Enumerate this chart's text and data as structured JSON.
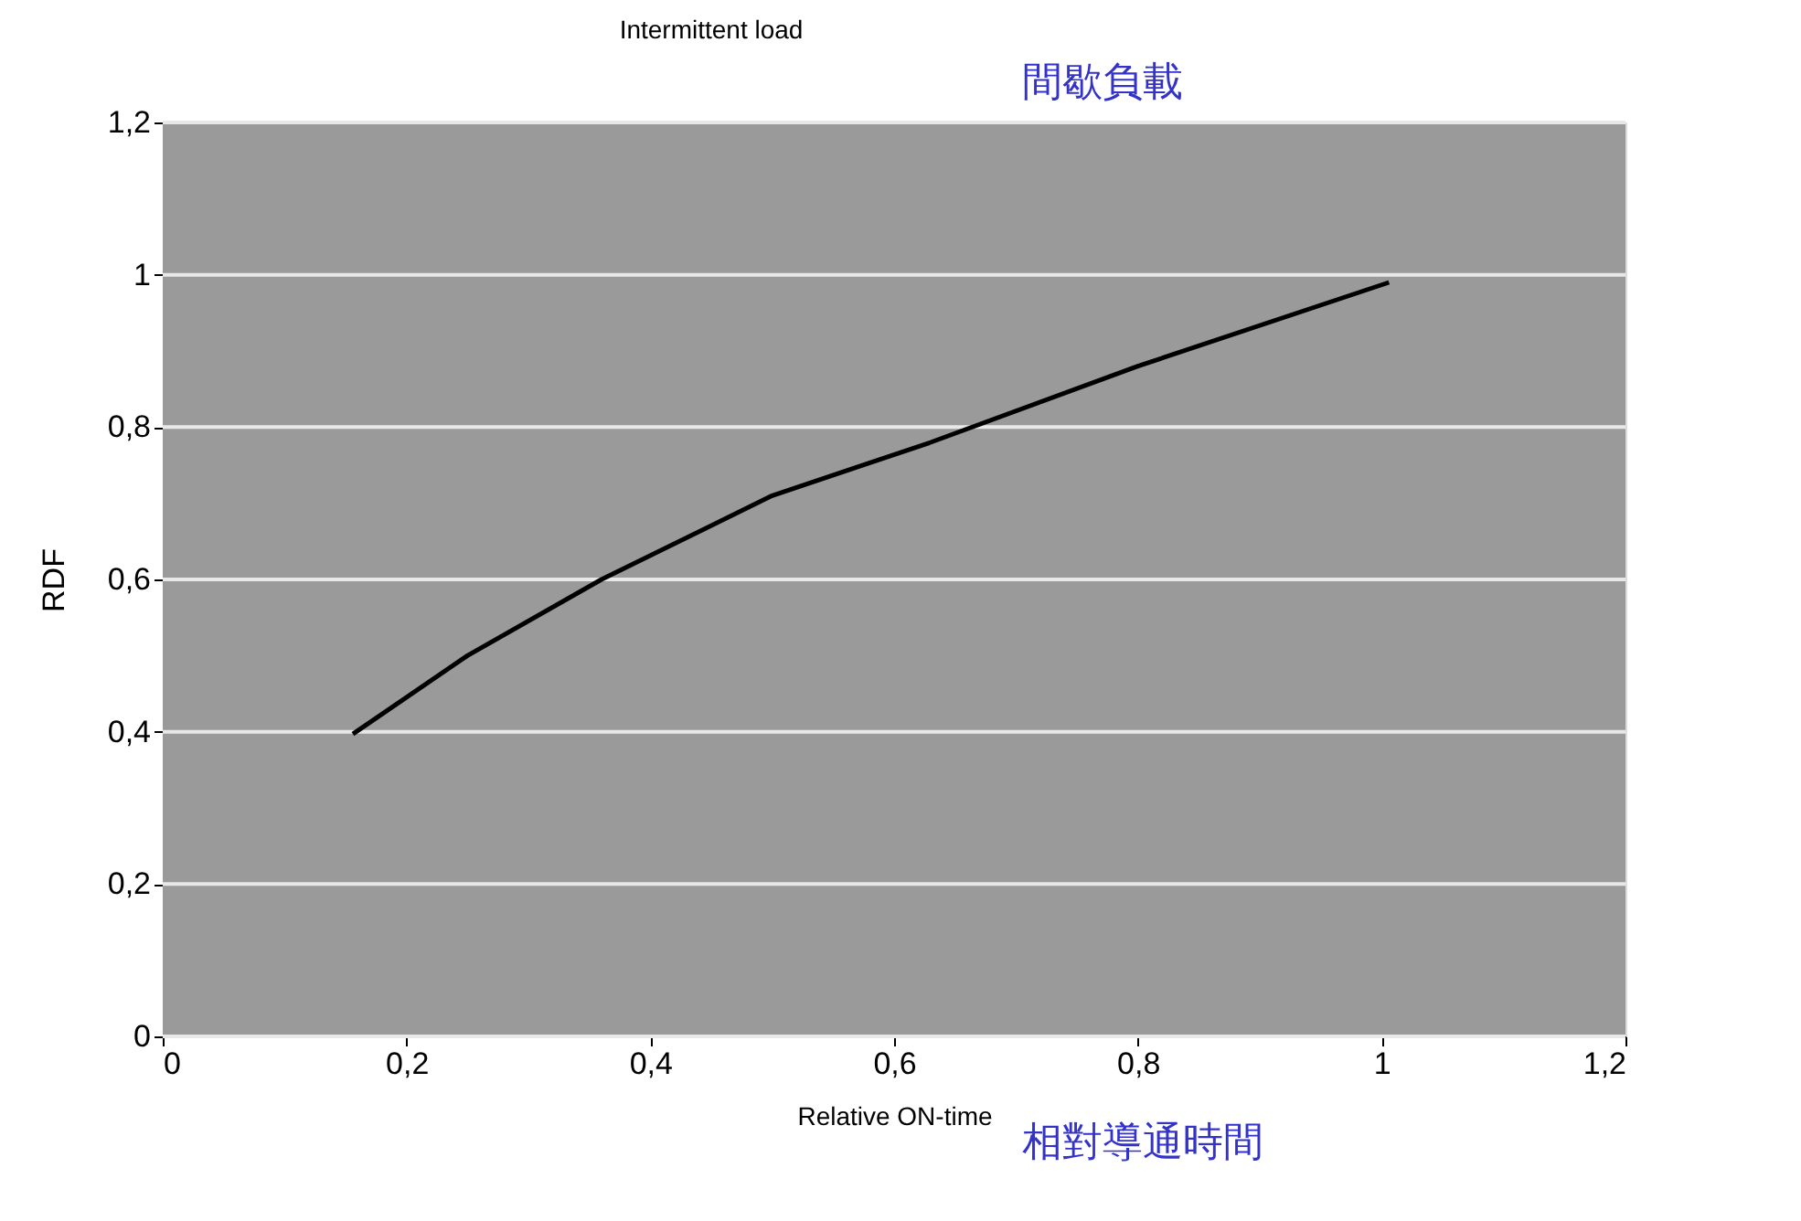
{
  "chart_data": {
    "type": "line",
    "title": "Intermittent load",
    "xlabel": "Relative ON-time",
    "ylabel": "RDF",
    "annotations": [
      "間歇負載",
      "相對導通時間"
    ],
    "x": [
      0.156,
      0.25,
      0.36,
      0.5,
      0.63,
      0.8,
      1.006
    ],
    "series": [
      {
        "color": "#000000",
        "values": [
          0.397,
          0.5,
          0.6,
          0.71,
          0.78,
          0.88,
          0.99
        ]
      }
    ],
    "xlim": [
      0,
      1.2
    ],
    "ylim": [
      0,
      1.2
    ],
    "xticks": [
      0,
      {
        "value": 0.2,
        "label": "0,2"
      },
      {
        "value": 0.4,
        "label": "0,4"
      },
      {
        "value": 0.6,
        "label": "0,6"
      },
      {
        "value": 0.8,
        "label": "0,8"
      },
      1,
      {
        "value": 1.2,
        "label": "1,2"
      }
    ],
    "yticks": [
      0,
      {
        "value": 0.2,
        "label": "0,2"
      },
      {
        "value": 0.4,
        "label": "0,4"
      },
      {
        "value": 0.6,
        "label": "0,6"
      },
      {
        "value": 0.8,
        "label": "0,8"
      },
      1,
      {
        "value": 1.2,
        "label": "1,2"
      }
    ],
    "grid": "y",
    "marker": "none",
    "line_style": "solid"
  }
}
